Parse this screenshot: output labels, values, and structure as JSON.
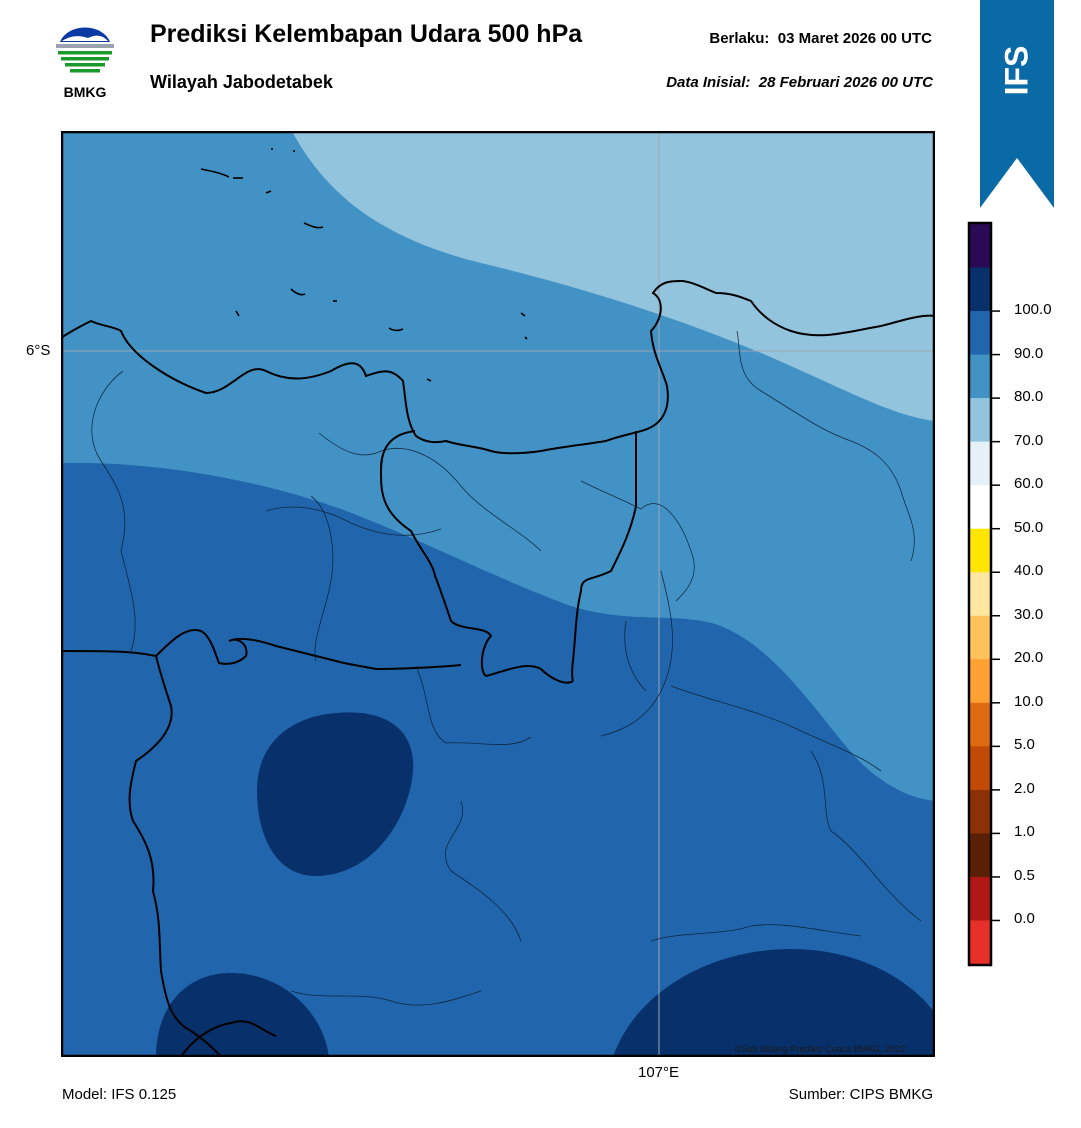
{
  "header": {
    "logo_text": "BMKG",
    "title": "Prediksi Kelembapan Udara 500 hPa",
    "subtitle": "Wilayah Jabodetabek",
    "valid_label": "Berlaku:",
    "valid_value": "03 Maret 2026 00 UTC",
    "init_label": "Data Inisial:",
    "init_value": "28 Februari 2026 00 UTC"
  },
  "ribbon": {
    "text": "IFS",
    "color": "#0a6aa6"
  },
  "map": {
    "lat_label": "6°S",
    "lon_label": "107°E",
    "copyright": "©Sub Bidang Prediksi Cuaca BMKG, 2022",
    "region_colors": {
      "60_70": "#93c4de",
      "70_80": "#4292c6",
      "80_90": "#2166ac",
      "90_100": "#08306b"
    }
  },
  "colorbar": {
    "ticks": [
      "100.0",
      "90.0",
      "80.0",
      "70.0",
      "60.0",
      "50.0",
      "40.0",
      "30.0",
      "20.0",
      "10.0",
      "5.0",
      "2.0",
      "1.0",
      "0.5",
      "0.0"
    ],
    "colors": [
      "#2a0a55",
      "#08306b",
      "#2166ac",
      "#4292c6",
      "#93c4de",
      "#e6f0f7",
      "#ffffff",
      "#ffe600",
      "#ffe7a0",
      "#ffc35a",
      "#ffa032",
      "#e06a12",
      "#c24a06",
      "#8c3007",
      "#5a2006",
      "#b01818",
      "#e8302a"
    ]
  },
  "footer": {
    "model": "Model: IFS 0.125",
    "source": "Sumber: CIPS BMKG"
  }
}
